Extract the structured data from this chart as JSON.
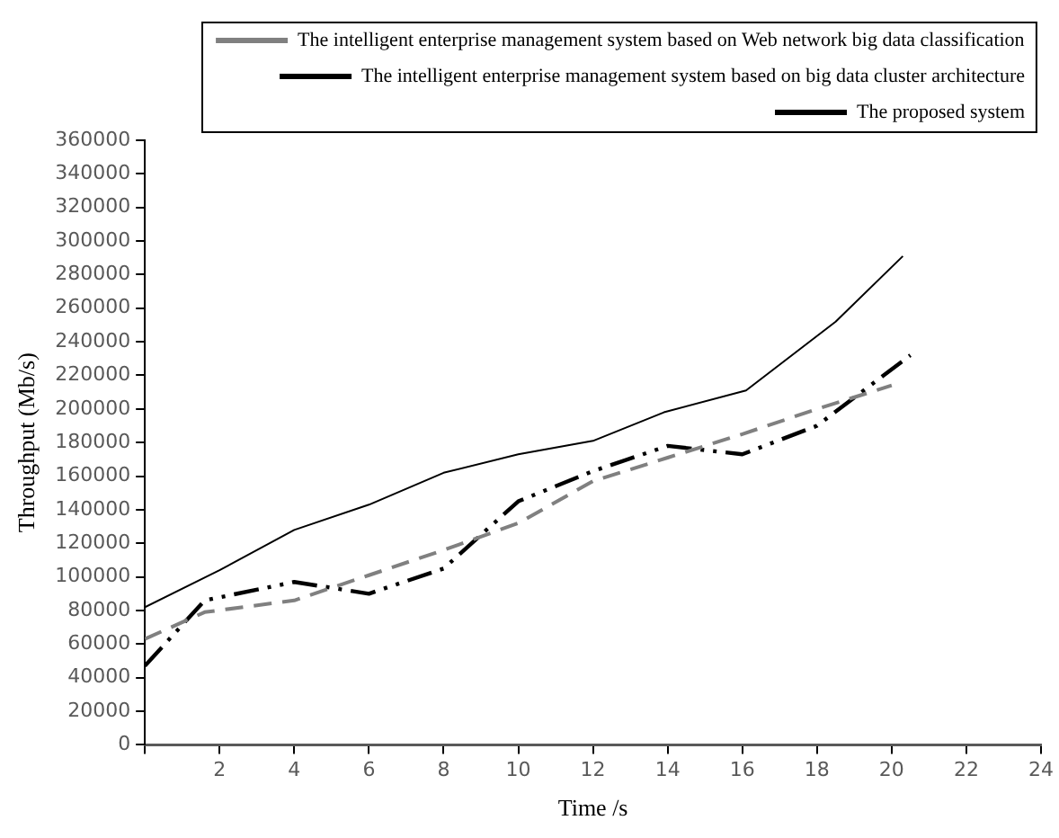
{
  "chart_data": {
    "type": "line",
    "xlabel": "Time /s",
    "ylabel": "Throughput (Mb/s)",
    "xlim": [
      0,
      24
    ],
    "xticks": [
      {
        "value": 0,
        "label": null
      },
      2,
      4,
      6,
      8,
      10,
      12,
      14,
      16,
      18,
      20,
      22,
      24
    ],
    "ylim": [
      0,
      360000
    ],
    "yticks": [
      0,
      20000,
      40000,
      60000,
      80000,
      100000,
      120000,
      140000,
      160000,
      180000,
      200000,
      220000,
      240000,
      260000,
      280000,
      300000,
      320000,
      340000,
      360000
    ],
    "grid": false,
    "legend": "top right",
    "marker": "none",
    "series": [
      {
        "name": "The intelligent enterprise management system based on Web network big data classification",
        "color": "#808080",
        "line_style": "dashed",
        "x": [
          0,
          1.6,
          4,
          6,
          8,
          10,
          12,
          14,
          16,
          18,
          20
        ],
        "values": [
          63000,
          79000,
          86000,
          101000,
          116000,
          132000,
          157000,
          171000,
          185000,
          200000,
          214000
        ]
      },
      {
        "name": "The intelligent enterprise management system based on big data cluster architecture",
        "color": "#000000",
        "line_style": "dotted",
        "x": [
          0,
          1.6,
          4,
          6,
          8,
          10,
          12,
          14,
          16,
          18,
          20.5
        ],
        "values": [
          47000,
          86000,
          97000,
          90000,
          105000,
          145000,
          163000,
          178000,
          173000,
          190000,
          232000
        ]
      },
      {
        "name": "The proposed system",
        "color": "#000000",
        "line_style": "solid",
        "x": [
          0,
          2,
          4,
          6,
          8,
          10,
          12,
          13.9,
          16.1,
          18.5,
          20.3
        ],
        "values": [
          82000,
          104000,
          128000,
          143000,
          162000,
          173000,
          181000,
          198000,
          211000,
          252000,
          291000
        ]
      }
    ]
  }
}
